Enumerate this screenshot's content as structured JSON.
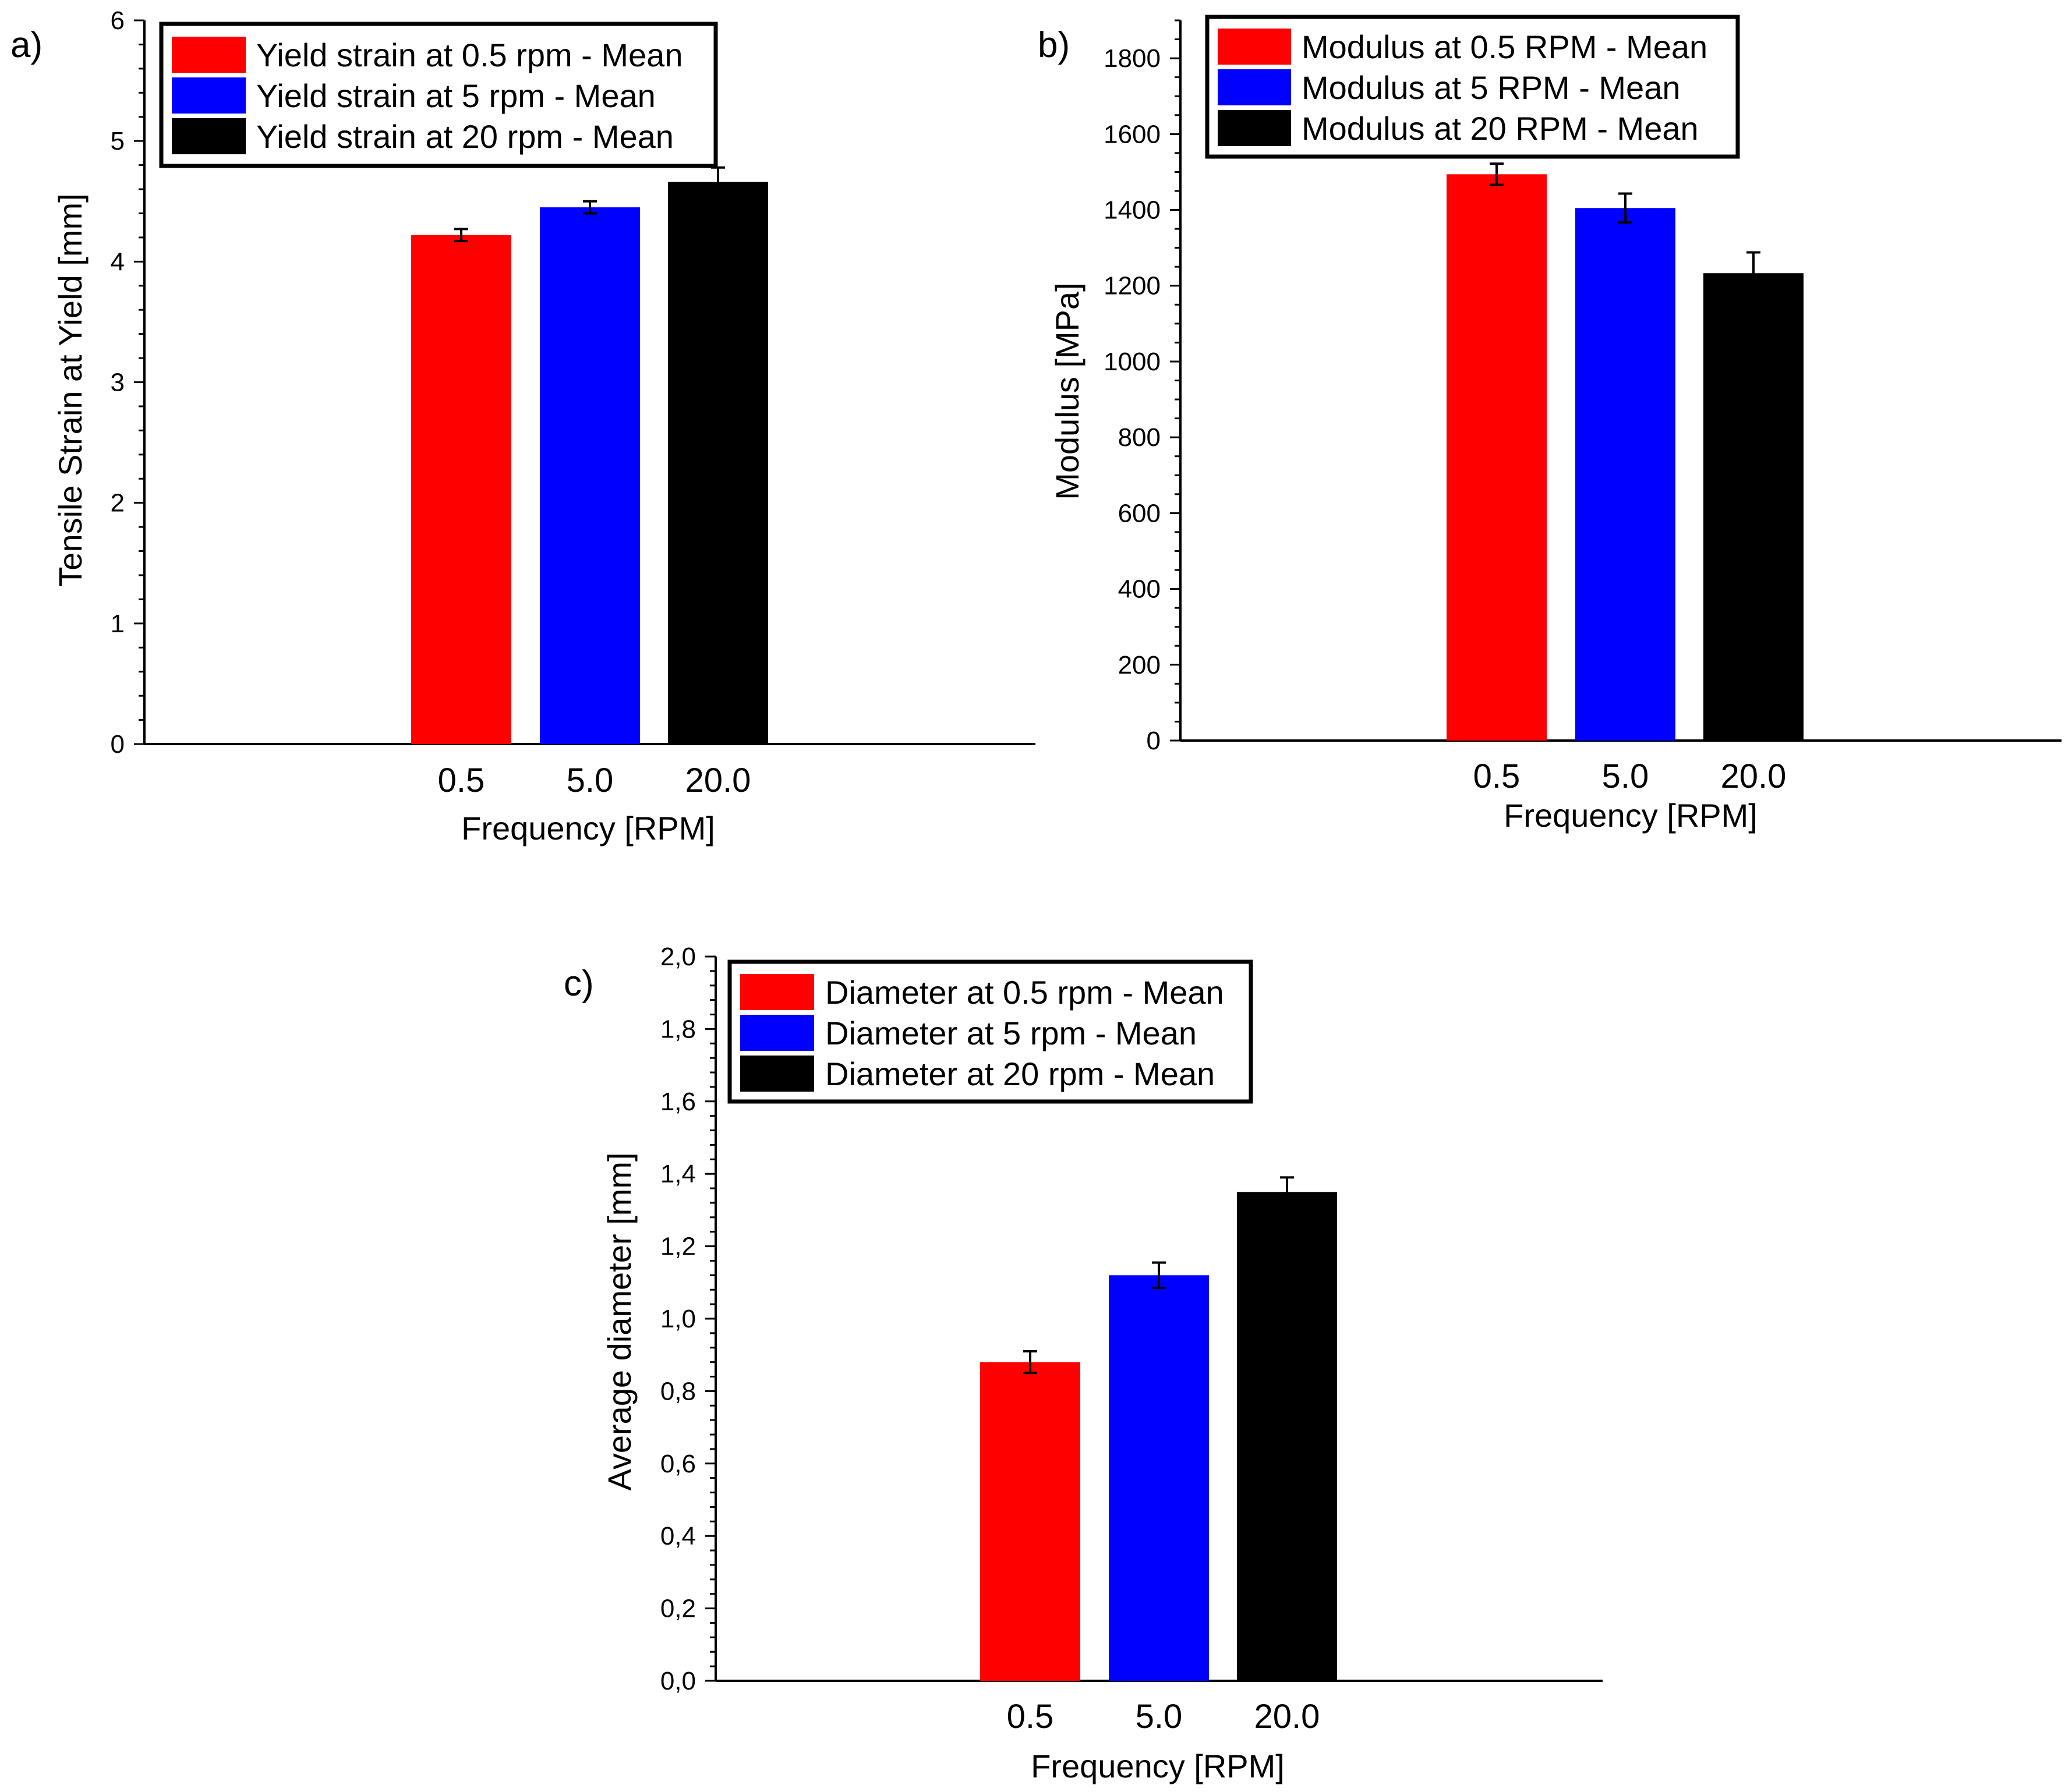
{
  "chart_data": [
    {
      "type": "bar",
      "panel_label": "a)",
      "title": "",
      "xlabel": "Frequency [RPM]",
      "ylabel": "Tensile Strain at Yield [mm]",
      "categories": [
        "0.5",
        "5.0",
        "20.0"
      ],
      "ylim": [
        0,
        6
      ],
      "y_major_ticks": [
        "0",
        "1",
        "2",
        "3",
        "4",
        "5",
        "6"
      ],
      "y_major_values": [
        0,
        1,
        2,
        3,
        4,
        5,
        6
      ],
      "series": [
        {
          "name": "Yield strain at 0.5 rpm - Mean",
          "color": "#ff0000",
          "value": 4.22,
          "error": 0.05
        },
        {
          "name": "Yield strain at 5 rpm - Mean",
          "color": "#0000ff",
          "value": 4.45,
          "error": 0.05
        },
        {
          "name": "Yield strain at 20 rpm - Mean",
          "color": "#000000",
          "value": 4.66,
          "error": 0.12
        }
      ],
      "legend": "top-left",
      "grid": false
    },
    {
      "type": "bar",
      "panel_label": "b)",
      "title": "",
      "xlabel": "Frequency [RPM]",
      "ylabel": "Modulus [MPa]",
      "categories": [
        "0.5",
        "5.0",
        "20.0"
      ],
      "ylim": [
        0,
        1900
      ],
      "y_major_ticks": [
        "0",
        "200",
        "400",
        "600",
        "800",
        "1000",
        "1200",
        "1400",
        "1600",
        "1800"
      ],
      "y_major_values": [
        0,
        200,
        400,
        600,
        800,
        1000,
        1200,
        1400,
        1600,
        1800
      ],
      "series": [
        {
          "name": "Modulus at 0.5 RPM - Mean",
          "color": "#ff0000",
          "value": 1494,
          "error": 28
        },
        {
          "name": "Modulus at 5 RPM - Mean",
          "color": "#0000ff",
          "value": 1405,
          "error": 38
        },
        {
          "name": "Modulus at 20 RPM - Mean",
          "color": "#000000",
          "value": 1233,
          "error": 55
        }
      ],
      "legend": "top-left",
      "grid": false
    },
    {
      "type": "bar",
      "panel_label": "c)",
      "title": "",
      "xlabel": "Frequency [RPM]",
      "ylabel": "Average diameter [mm]",
      "categories": [
        "0.5",
        "5.0",
        "20.0"
      ],
      "ylim": [
        0,
        2.0
      ],
      "y_major_ticks": [
        "0,0",
        "0,2",
        "0,4",
        "0,6",
        "0,8",
        "1,0",
        "1,2",
        "1,4",
        "1,6",
        "1,8",
        "2,0"
      ],
      "y_major_values": [
        0,
        0.2,
        0.4,
        0.6,
        0.8,
        1.0,
        1.2,
        1.4,
        1.6,
        1.8,
        2.0
      ],
      "series": [
        {
          "name": "Diameter at 0.5 rpm - Mean",
          "color": "#ff0000",
          "value": 0.88,
          "error": 0.03
        },
        {
          "name": "Diameter at 5 rpm - Mean",
          "color": "#0000ff",
          "value": 1.12,
          "error": 0.035
        },
        {
          "name": "Diameter at 20 rpm - Mean",
          "color": "#000000",
          "value": 1.35,
          "error": 0.04
        }
      ],
      "legend": "top-left",
      "grid": false
    }
  ]
}
